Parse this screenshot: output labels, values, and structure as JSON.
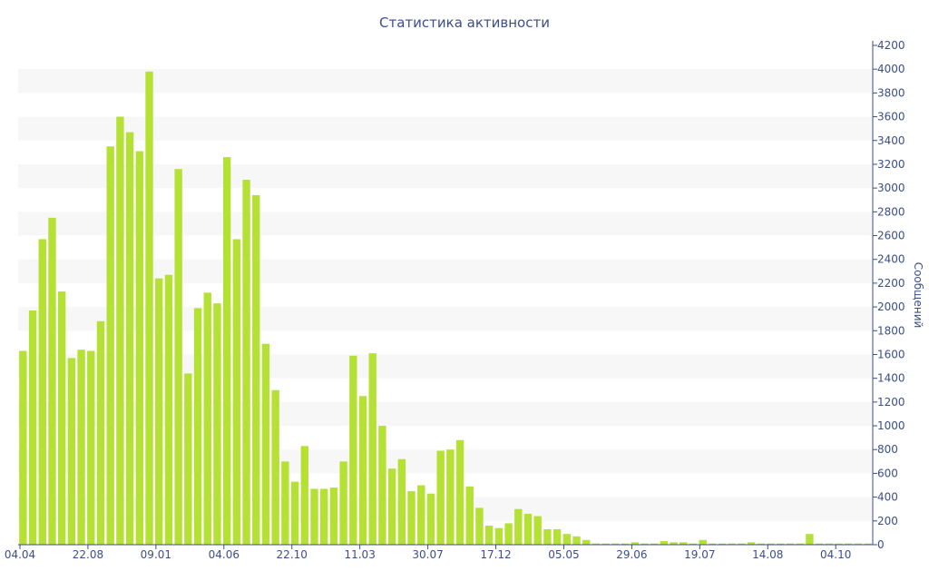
{
  "colors": {
    "bar": "#b5e034",
    "text": "#3b4e8c",
    "band": "#f7f7f7",
    "axis": "#3b4e8c"
  },
  "chart_data": {
    "type": "bar",
    "title": "Статистика активности",
    "xlabel": "",
    "ylabel": "Сообщений",
    "ylim": [
      0,
      4200
    ],
    "y_ticks": [
      0,
      200,
      400,
      600,
      800,
      1000,
      1200,
      1400,
      1600,
      1800,
      2000,
      2200,
      2400,
      2600,
      2800,
      3000,
      3200,
      3400,
      3600,
      3800,
      4000,
      4200
    ],
    "y_axis_side": "right",
    "x_tick_labels": [
      {
        "index": 0,
        "label": "04.04"
      },
      {
        "index": 7,
        "label": "22.08"
      },
      {
        "index": 14,
        "label": "09.01"
      },
      {
        "index": 21,
        "label": "04.06"
      },
      {
        "index": 28,
        "label": "22.10"
      },
      {
        "index": 35,
        "label": "11.03"
      },
      {
        "index": 42,
        "label": "30.07"
      },
      {
        "index": 49,
        "label": "17.12"
      },
      {
        "index": 56,
        "label": "05.05"
      },
      {
        "index": 63,
        "label": "29.06"
      },
      {
        "index": 70,
        "label": "19.07"
      },
      {
        "index": 77,
        "label": "14.08"
      },
      {
        "index": 84,
        "label": "04.10"
      }
    ],
    "values": [
      1630,
      1970,
      2570,
      2750,
      2130,
      1570,
      1640,
      1630,
      1880,
      3350,
      3600,
      3470,
      3310,
      3980,
      2240,
      2270,
      3160,
      1440,
      1990,
      2120,
      2030,
      3260,
      2570,
      3070,
      2940,
      1690,
      1300,
      700,
      530,
      830,
      470,
      470,
      480,
      700,
      1590,
      1250,
      1610,
      1000,
      640,
      720,
      450,
      500,
      430,
      790,
      800,
      880,
      490,
      310,
      160,
      140,
      180,
      300,
      260,
      240,
      130,
      130,
      90,
      70,
      40,
      10,
      10,
      10,
      10,
      20,
      10,
      10,
      30,
      20,
      20,
      10,
      40,
      10,
      10,
      10,
      10,
      20,
      10,
      10,
      10,
      10,
      10,
      90,
      10,
      10,
      10,
      10,
      10,
      10
    ],
    "grid": "alternating-bands"
  }
}
